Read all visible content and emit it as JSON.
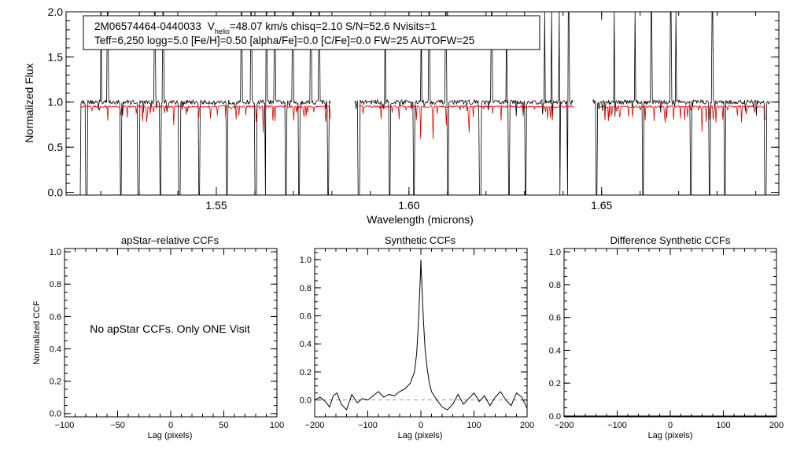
{
  "header": {
    "star_id": "2M06574464-0440033",
    "vhelio_prefix": "V",
    "vhelio_sub": "helio",
    "vhelio_rest": "=48.07 km/s  chisq=2.10  S/N=52.6  Nvisits=1",
    "line2": "Teff=6,250 logg=5.0 [Fe/H]=0.50 [alpha/Fe]=0.0 [C/Fe]=0.0 FW=25 AUTOFW=25"
  },
  "note": "No apStar CCFs.  Only ONE Visit",
  "chart_data": [
    {
      "type": "line",
      "title": "",
      "xlabel": "Wavelength (microns)",
      "ylabel": "Normalized Flux",
      "xlim": [
        1.511,
        1.696
      ],
      "ylim": [
        -0.03,
        2.0
      ],
      "xticks": [
        1.55,
        1.6,
        1.65
      ],
      "xtick_labels": [
        "1.55",
        "1.60",
        "1.65"
      ],
      "yticks": [
        0.0,
        0.5,
        1.0,
        1.5,
        2.0
      ],
      "ytick_labels": [
        "0.0",
        "0.5",
        "1.0",
        "1.5",
        "2.0"
      ],
      "series": [
        {
          "color": "#000000",
          "segments": [
            [
              1.5145,
              1.5798
            ],
            [
              1.5859,
              1.6427
            ],
            [
              1.6477,
              1.6938
            ]
          ],
          "continuum": 1.0,
          "noise": 0.025,
          "dips": [
            1.5145,
            1.5163,
            1.5252,
            1.5298,
            1.5355,
            1.5404,
            1.5455,
            1.5528,
            1.5602,
            1.5628,
            1.5681,
            1.5715,
            1.579,
            1.587,
            1.595,
            1.6013,
            1.6101,
            1.6185,
            1.626,
            1.6303,
            1.6391,
            1.6413,
            1.6487,
            1.6607,
            1.6732,
            1.678,
            1.682,
            1.6925
          ],
          "spikes": [
            1.5201,
            1.5218,
            1.534,
            1.5362,
            1.5565,
            1.559,
            1.563,
            1.5652,
            1.5698,
            1.5745,
            1.5767,
            1.5938,
            1.6032,
            1.6052,
            1.6096,
            1.6215,
            1.6253,
            1.6352,
            1.637,
            1.639,
            1.6414,
            1.6447,
            1.6533,
            1.6587,
            1.6629,
            1.668,
            1.6693,
            1.6787
          ]
        },
        {
          "color": "#dd0000",
          "segments": [
            [
              1.515,
              1.5798
            ],
            [
              1.587,
              1.6427
            ],
            [
              1.6487,
              1.6925
            ]
          ],
          "continuum": 0.95,
          "lines": 0.12
        }
      ]
    },
    {
      "type": "line",
      "title": "apStar–relative CCFs",
      "xlabel": "Lag (pixels)",
      "ylabel": "Normalized CCF",
      "xlim": [
        -100,
        100
      ],
      "ylim": [
        -0.02,
        1.02
      ],
      "xticks": [
        -100,
        -50,
        0,
        50,
        100
      ],
      "xtick_labels": [
        "−100",
        "−50",
        "0",
        "50",
        "100"
      ],
      "yticks": [
        0.0,
        0.2,
        0.4,
        0.6,
        0.8,
        1.0
      ],
      "ytick_labels": [
        "0.0",
        "0.2",
        "0.4",
        "0.6",
        "0.8",
        "1.0"
      ],
      "series": []
    },
    {
      "type": "line",
      "title": "Synthetic CCFs",
      "xlabel": "Lag (pixels)",
      "ylabel": "",
      "xlim": [
        -200,
        200
      ],
      "ylim": [
        -0.12,
        1.08
      ],
      "xticks": [
        -200,
        -100,
        0,
        100,
        200
      ],
      "xtick_labels": [
        "−200",
        "−100",
        "0",
        "100",
        "200"
      ],
      "yticks": [
        0.0,
        0.2,
        0.4,
        0.6,
        0.8,
        1.0
      ],
      "ytick_labels": [
        "0.0",
        "0.2",
        "0.4",
        "0.6",
        "0.8",
        "1.0"
      ],
      "zero_line": true,
      "series": [
        {
          "x": [
            -200,
            -190,
            -180,
            -172,
            -165,
            -158,
            -150,
            -140,
            -130,
            -120,
            -110,
            -100,
            -90,
            -80,
            -70,
            -60,
            -50,
            -40,
            -30,
            -20,
            -12,
            -8,
            -5,
            -3,
            -1,
            0,
            1,
            3,
            5,
            8,
            12,
            16,
            20,
            30,
            40,
            50,
            60,
            70,
            80,
            90,
            100,
            110,
            120,
            130,
            140,
            150,
            160,
            170,
            180,
            190,
            200
          ],
          "values": [
            0.0,
            0.02,
            -0.01,
            -0.05,
            0.03,
            0.05,
            -0.03,
            -0.07,
            0.04,
            -0.02,
            0.01,
            0.0,
            0.03,
            0.06,
            0.02,
            0.04,
            0.03,
            0.06,
            0.08,
            0.12,
            0.2,
            0.33,
            0.52,
            0.7,
            0.88,
            1.0,
            0.9,
            0.72,
            0.55,
            0.36,
            0.22,
            0.12,
            0.06,
            0.0,
            -0.05,
            -0.07,
            -0.03,
            0.04,
            -0.03,
            0.01,
            0.05,
            -0.01,
            0.03,
            -0.04,
            0.02,
            0.06,
            0.0,
            -0.04,
            0.05,
            0.02,
            -0.06
          ]
        }
      ]
    },
    {
      "type": "line",
      "title": "Difference Synthetic CCFs",
      "xlabel": "Lag (pixels)",
      "ylabel": "",
      "xlim": [
        -200,
        200
      ],
      "ylim": [
        -0.005,
        1.02
      ],
      "xticks": [
        -200,
        -100,
        0,
        100,
        200
      ],
      "xtick_labels": [
        "−200",
        "−100",
        "0",
        "100",
        "200"
      ],
      "yticks": [
        0.0,
        0.2,
        0.4,
        0.6,
        0.8,
        1.0
      ],
      "ytick_labels": [
        "0.0",
        "0.2",
        "0.4",
        "0.6",
        "0.8",
        "1.0"
      ],
      "series": [
        {
          "x": [
            -200,
            -100,
            0,
            100,
            200
          ],
          "values": [
            0.0,
            0.0,
            0.0,
            0.0,
            0.0
          ]
        }
      ]
    }
  ]
}
